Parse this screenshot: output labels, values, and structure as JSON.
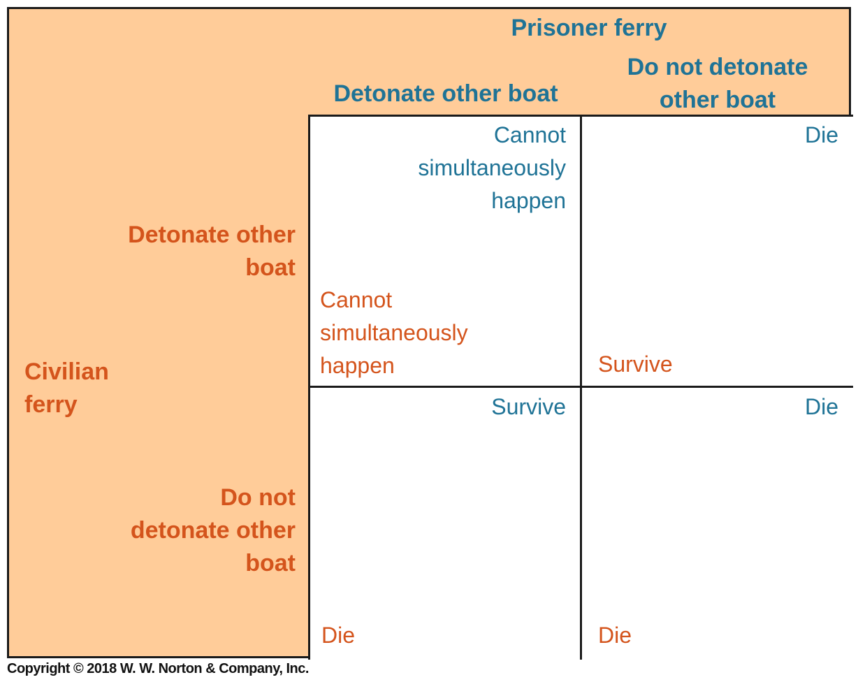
{
  "column_player": {
    "label": "Prisoner ferry",
    "strategies": [
      "Detonate other boat",
      "Do not detonate other boat"
    ]
  },
  "row_player": {
    "label_lines": [
      "Civilian",
      "ferry"
    ],
    "strategies": [
      [
        "Detonate other",
        "boat"
      ],
      [
        "Do not",
        "detonate other",
        "boat"
      ]
    ]
  },
  "do_not_detonate_col_lines": [
    "Do not detonate",
    "other boat"
  ],
  "cells": {
    "r0c0": {
      "prisoner_lines": [
        "Cannot",
        "simultaneously",
        "happen"
      ],
      "civilian_lines": [
        "Cannot",
        "simultaneously",
        "happen"
      ]
    },
    "r0c1": {
      "prisoner": "Die",
      "civilian": "Survive"
    },
    "r1c0": {
      "prisoner": "Survive",
      "civilian": "Die"
    },
    "r1c1": {
      "prisoner": "Die",
      "civilian": "Die"
    }
  },
  "colors": {
    "background": "#FFCC99",
    "prisoner": "#1F7396",
    "civilian": "#D4541C"
  },
  "copyright": "Copyright © 2018 W. W. Norton & Company, Inc."
}
